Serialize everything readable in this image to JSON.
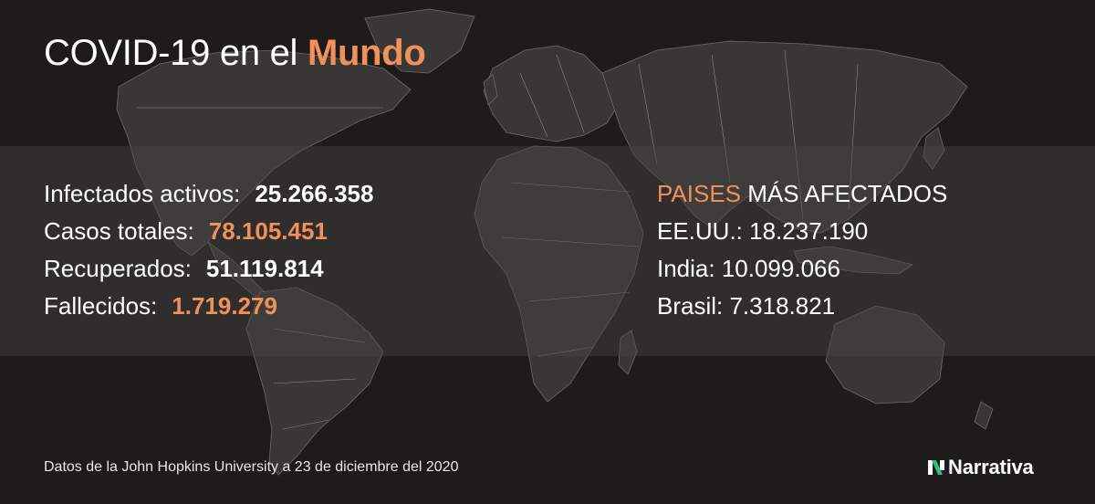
{
  "title": {
    "prefix": "COVID-19 en el",
    "accent": "Mundo"
  },
  "stats": [
    {
      "label": "Infectados activos:",
      "value": "25.266.358",
      "color": "white"
    },
    {
      "label": "Casos totales:",
      "value": "78.105.451",
      "color": "orange"
    },
    {
      "label": "Recuperados:",
      "value": "51.119.814",
      "color": "white"
    },
    {
      "label": "Fallecidos:",
      "value": "1.719.279",
      "color": "orange"
    }
  ],
  "countries": {
    "heading_highlight": "PAISES",
    "heading_rest": "MÁS AFECTADOS",
    "items": [
      "EE.UU.: 18.237.190",
      "India: 10.099.066",
      "Brasil: 7.318.821"
    ]
  },
  "footer": {
    "source": "Datos de la John Hopkins University a 23 de diciembre del 2020"
  },
  "brand": {
    "name": "Narrativa",
    "logo_icon": "narrativa-n-icon"
  },
  "colors": {
    "accent": "#f0905a",
    "background": "#1e1c1b",
    "land": "#3a3837",
    "logo_green": "#2ec27e"
  }
}
